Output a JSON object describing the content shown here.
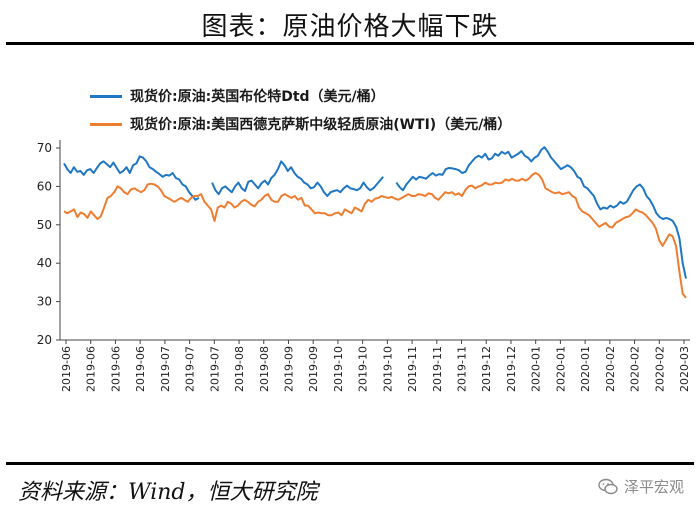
{
  "header": {
    "title": "图表：原油价格大幅下跌"
  },
  "footer": {
    "source": "资料来源：Wind，恒大研究院",
    "watermark": "泽平宏观",
    "watermark_icon": "wechat-icon"
  },
  "colors": {
    "brent": "#1f77c4",
    "wti": "#ed7d31",
    "axis": "#444444"
  },
  "chart_data": {
    "type": "line",
    "title": "图表：原油价格大幅下跌",
    "ylim": [
      20,
      70
    ],
    "yticks": [
      20,
      30,
      40,
      50,
      60,
      70
    ],
    "xlabels": [
      "2019-06",
      "2019-06",
      "2019-06",
      "2019-06",
      "2019-07",
      "2019-07",
      "2019-07",
      "2019-08",
      "2019-08",
      "2019-09",
      "2019-09",
      "2019-10",
      "2019-10",
      "2019-10",
      "2019-11",
      "2019-11",
      "2019-11",
      "2019-12",
      "2019-12",
      "2020-01",
      "2020-01",
      "2020-01",
      "2020-02",
      "2020-02",
      "2020-02",
      "2020-03"
    ],
    "grid": false,
    "legend_position": "top-left",
    "series": [
      {
        "name": "现货价:原油:英国布伦特Dtd（美元/桶）",
        "color": "#1f77c4",
        "values": [
          66,
          64.5,
          63.5,
          65,
          63.8,
          64,
          63,
          64.2,
          64.5,
          63.5,
          64.8,
          66,
          66.5,
          65.8,
          65,
          66.2,
          64.8,
          63.5,
          64,
          65,
          63.5,
          65.5,
          66,
          67.8,
          67.5,
          66.5,
          65,
          64.5,
          63.8,
          63.2,
          62.5,
          63,
          62.8,
          63.5,
          62.2,
          61.8,
          60.5,
          60,
          58.5,
          57.5,
          56.5,
          57,
          null,
          null,
          null,
          61,
          59,
          58,
          59.5,
          60,
          59.2,
          58.5,
          60,
          61,
          59.5,
          58.8,
          61.2,
          61.5,
          60.5,
          59.5,
          60.8,
          61.5,
          60.5,
          62.2,
          63,
          64.5,
          66.5,
          65.5,
          64,
          65,
          63.5,
          62.5,
          62,
          61,
          60.5,
          59.5,
          59.8,
          61,
          60,
          58.5,
          57.5,
          58.5,
          58.8,
          59,
          58.5,
          59.5,
          60.2,
          59.5,
          59.3,
          59,
          59.5,
          61,
          59.8,
          59,
          59.5,
          60.5,
          61.5,
          62.5,
          null,
          null,
          null,
          61,
          59.8,
          59,
          60.5,
          61.5,
          62.5,
          61.8,
          62.5,
          62.3,
          62,
          62.8,
          63.5,
          62.8,
          63.2,
          63,
          64.5,
          64.8,
          64.7,
          64.5,
          64.2,
          63.5,
          63.8,
          65.5,
          66.5,
          67.5,
          68,
          67.5,
          68.5,
          67,
          67.3,
          68.5,
          68,
          69,
          68.5,
          69,
          67.5,
          68,
          68.5,
          69.2,
          68,
          67.5,
          66.5,
          67.5,
          68,
          69.5,
          70.2,
          69,
          67.5,
          66.5,
          65.5,
          64.5,
          65,
          65.5,
          65,
          64,
          62.5,
          62,
          60,
          59.5,
          58.5,
          57.5,
          55.5,
          54,
          54.5,
          54.2,
          55,
          54.5,
          55,
          56,
          55.5,
          56,
          57.5,
          59,
          60,
          60.5,
          59.5,
          57.5,
          56.5,
          55,
          53,
          52,
          51.5,
          51.8,
          51.5,
          51,
          49.5,
          46.5,
          40,
          36
        ]
      },
      {
        "name": "现货价:原油:美国西德克萨斯中级轻质原油(WTI)（美元/桶）",
        "color": "#ed7d31",
        "values": [
          53.5,
          53,
          53.5,
          54,
          52,
          53.2,
          52.8,
          51.8,
          53.5,
          52.5,
          51.5,
          52.2,
          54.5,
          57,
          57.5,
          58.5,
          60,
          59.5,
          58.5,
          58,
          59.2,
          59.5,
          59,
          58.5,
          59,
          60.5,
          60.7,
          60.5,
          60,
          59,
          57.5,
          57,
          56.5,
          56,
          56.5,
          57,
          56.5,
          56,
          57,
          57.5,
          57.5,
          58,
          56,
          55,
          54,
          51,
          54.5,
          55,
          54.5,
          56,
          55.5,
          54.5,
          55,
          56,
          56.5,
          56,
          55.2,
          54.8,
          56,
          56.5,
          57.5,
          58,
          56.5,
          56,
          56,
          57.5,
          58,
          57.5,
          57,
          57.5,
          56.5,
          57,
          55,
          55,
          54,
          53,
          53.2,
          53,
          53,
          52.5,
          52.5,
          53,
          53.2,
          52.5,
          54,
          53.5,
          53,
          54.5,
          54,
          53.5,
          55.5,
          56.5,
          56,
          56.8,
          57,
          57.5,
          57.2,
          57,
          57.3,
          56.8,
          56.5,
          57,
          57.5,
          58,
          57.5,
          57.5,
          58,
          57.8,
          57.5,
          58.2,
          58,
          57,
          56.5,
          57.5,
          58.5,
          58.2,
          58.5,
          57.8,
          58.2,
          57.5,
          59,
          60,
          60.2,
          59.5,
          60,
          60.3,
          61,
          60.5,
          60.5,
          61,
          60.8,
          61,
          61.8,
          61.5,
          62,
          61.5,
          61.5,
          62,
          61.5,
          62,
          63,
          63.5,
          63,
          61.8,
          59.5,
          59,
          58.5,
          58.2,
          58.5,
          58,
          58.2,
          58.5,
          57.5,
          57,
          54.5,
          53.5,
          53,
          52.5,
          51.5,
          50.5,
          49.5,
          50,
          50.5,
          49.5,
          49.3,
          50.5,
          51,
          51.5,
          52,
          52.2,
          53,
          54,
          53.5,
          53.2,
          52.5,
          51.5,
          50.5,
          49,
          46,
          44.5,
          46,
          47.5,
          47,
          44.5,
          38,
          32,
          31
        ]
      }
    ]
  }
}
